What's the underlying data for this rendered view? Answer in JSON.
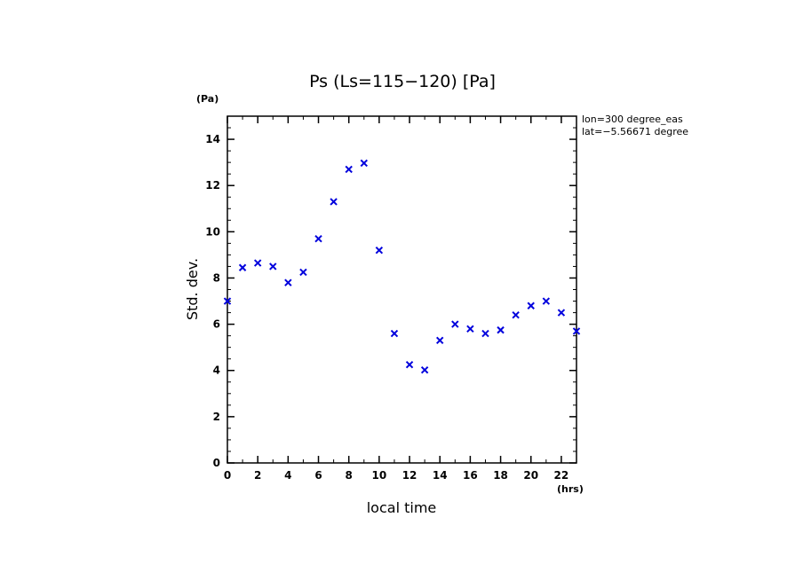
{
  "chart_data": {
    "type": "scatter",
    "title": "Ps (Ls=115−120) [Pa]",
    "xlabel": "local time",
    "ylabel": "Std. dev.",
    "x_unit": "(hrs)",
    "y_unit": "(Pa)",
    "xlim": [
      0,
      23
    ],
    "ylim": [
      0,
      15
    ],
    "x_ticks": [
      0,
      2,
      4,
      6,
      8,
      10,
      12,
      14,
      16,
      18,
      20,
      22
    ],
    "y_ticks": [
      0,
      2,
      4,
      6,
      8,
      10,
      12,
      14
    ],
    "marker": "x",
    "marker_color": "#0000dd",
    "annotations": [
      "lon=300 degree_eas",
      "lat=−5.56671 degree"
    ],
    "series": [
      {
        "x": [
          0,
          1,
          2,
          3,
          4,
          5,
          6,
          7,
          8,
          9,
          10,
          11,
          12,
          13,
          14,
          15,
          16,
          17,
          18,
          19,
          20,
          21,
          22,
          23
        ],
        "y": [
          7.0,
          8.45,
          8.65,
          8.5,
          7.8,
          8.25,
          9.7,
          11.3,
          12.7,
          12.97,
          9.2,
          5.6,
          4.25,
          4.02,
          5.3,
          6.0,
          5.8,
          5.6,
          5.75,
          6.4,
          6.8,
          7.0,
          6.5,
          5.7
        ]
      }
    ]
  }
}
